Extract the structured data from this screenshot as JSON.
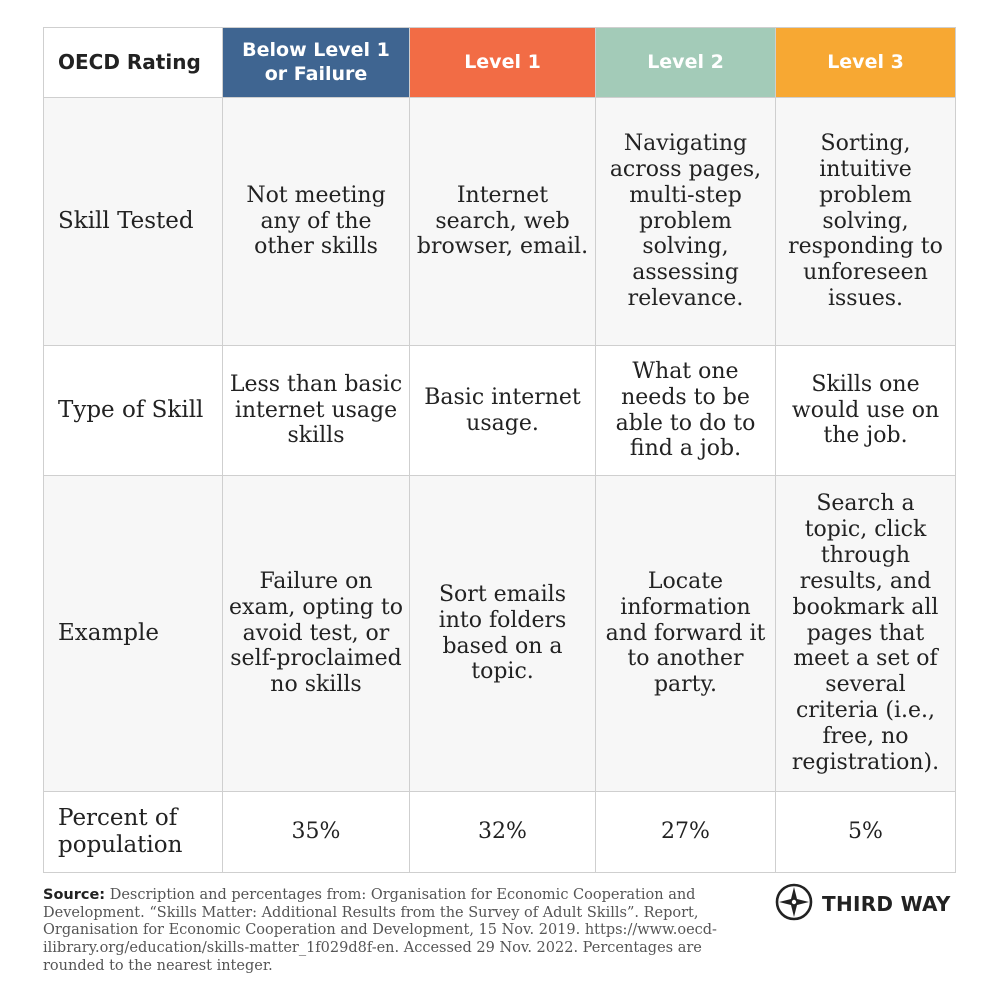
{
  "colors": {
    "below": "#3f6591",
    "level1": "#f26c45",
    "level2": "#a3cbb8",
    "level3": "#f7a833"
  },
  "table": {
    "corner": "OECD Rating",
    "columns": [
      "Below Level 1 or Failure",
      "Level 1",
      "Level 2",
      "Level 3"
    ],
    "rows": [
      {
        "label": "Skill Tested",
        "cells": [
          "Not meeting any of the other skills",
          "Internet search, web browser, email.",
          "Navigating across pages, multi-step problem solving, assessing relevance.",
          "Sorting, intuitive problem solving, responding to unforeseen issues."
        ]
      },
      {
        "label": "Type of Skill",
        "cells": [
          "Less than basic internet usage skills",
          "Basic internet usage.",
          "What one needs to be able to do to find a job.",
          "Skills one would use on the job."
        ]
      },
      {
        "label": "Example",
        "cells": [
          "Failure on exam, opting to avoid test, or self-proclaimed no skills",
          "Sort emails into folders based on a topic.",
          "Locate information and forward it to another party.",
          "Search a topic, click through results, and bookmark all pages that meet a set of several criteria (i.e., free, no registration)."
        ]
      },
      {
        "label": "Percent of population",
        "cells": [
          "35%",
          "32%",
          "27%",
          "5%"
        ]
      }
    ]
  },
  "footer": {
    "source_label": "Source:",
    "source_text": "Description and percentages from: Organisation for Economic Cooperation and Development. “Skills Matter: Additional Results from the Survey of Adult Skills”. Report, Organisation for Economic Cooperation and Development, 15 Nov. 2019. https://www.oecd-ilibrary.org/education/skills-matter_1f029d8f-en. Accessed 29 Nov. 2022. Percentages are rounded to the nearest integer.",
    "brand": "THIRD WAY",
    "brand_icon": "compass-icon"
  }
}
